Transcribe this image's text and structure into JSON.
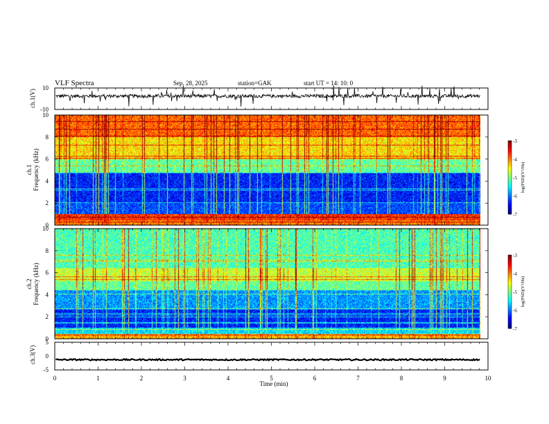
{
  "header": {
    "title": "VLF  Spectra",
    "date": "Sep. 28,  2025",
    "station": "station=GAK",
    "start_ut": "start  UT  =    14: 10: 0"
  },
  "chart_data": [
    {
      "type": "line",
      "panel": "ch1-waveform",
      "ylabel": "ch.1(V)",
      "ylim": [
        -10,
        10
      ],
      "y_ticks": [
        "10",
        "-10"
      ],
      "baseline_v": 2.5,
      "trace_span_min": [
        0.02,
        9.82
      ]
    },
    {
      "type": "heatmap",
      "panel": "ch1-spectrogram",
      "ylabel": "ch.1\nFrequency  (kHz)",
      "xlim": [
        0,
        10
      ],
      "ylim": [
        0,
        10
      ],
      "y_ticks": [
        "0",
        "2",
        "4",
        "6",
        "8",
        "10"
      ],
      "data_span_min": [
        0.02,
        9.82
      ],
      "colorbar": {
        "label": "log(PSD)(V²/Hz)",
        "range": [
          -7,
          -3
        ],
        "ticks": [
          "-3",
          "-4",
          "-5",
          "-6",
          "-7"
        ]
      },
      "bands": [
        {
          "from_khz": 0.0,
          "to_khz": 0.4,
          "level": -4.0
        },
        {
          "from_khz": 0.4,
          "to_khz": 1.0,
          "level": -3.7
        },
        {
          "from_khz": 1.0,
          "to_khz": 2.0,
          "level": -6.2
        },
        {
          "from_khz": 2.0,
          "to_khz": 4.8,
          "level": -6.4
        },
        {
          "from_khz": 4.8,
          "to_khz": 6.0,
          "level": -5.1
        },
        {
          "from_khz": 6.0,
          "to_khz": 8.0,
          "level": -4.4
        },
        {
          "from_khz": 8.0,
          "to_khz": 10.0,
          "level": -3.9
        }
      ]
    },
    {
      "type": "heatmap",
      "panel": "ch2-spectrogram",
      "ylabel": "ch.2\nFrequency  (kHz)",
      "xlim": [
        0,
        10
      ],
      "ylim": [
        0,
        10
      ],
      "y_ticks": [
        "0",
        "2",
        "4",
        "6",
        "8",
        "10"
      ],
      "data_span_min": [
        0.02,
        9.82
      ],
      "colorbar": {
        "label": "log(PSD)(V²/Hz)",
        "range": [
          -7,
          -3
        ],
        "ticks": [
          "-3",
          "-4",
          "-5",
          "-6",
          "-7"
        ]
      },
      "bands": [
        {
          "from_khz": 0.0,
          "to_khz": 0.4,
          "level": -4.2
        },
        {
          "from_khz": 0.4,
          "to_khz": 1.0,
          "level": -5.6
        },
        {
          "from_khz": 1.0,
          "to_khz": 2.6,
          "level": -6.4
        },
        {
          "from_khz": 2.6,
          "to_khz": 4.4,
          "level": -5.9
        },
        {
          "from_khz": 4.4,
          "to_khz": 5.2,
          "level": -5.1
        },
        {
          "from_khz": 5.2,
          "to_khz": 6.4,
          "level": -4.7
        },
        {
          "from_khz": 6.4,
          "to_khz": 10.0,
          "level": -5.2
        }
      ]
    },
    {
      "type": "line",
      "panel": "ch3-waveform",
      "ylabel": "ch.3(V)",
      "ylim": [
        -5,
        5
      ],
      "y_ticks": [
        "5",
        "0",
        "-5"
      ],
      "baseline_v": -1.3,
      "trace_span_min": [
        0.02,
        9.82
      ],
      "xlabel": "Time  (min)",
      "xlim": [
        0,
        10
      ],
      "x_ticks": [
        "0",
        "1",
        "2",
        "3",
        "4",
        "5",
        "6",
        "7",
        "8",
        "9",
        "10"
      ]
    }
  ]
}
